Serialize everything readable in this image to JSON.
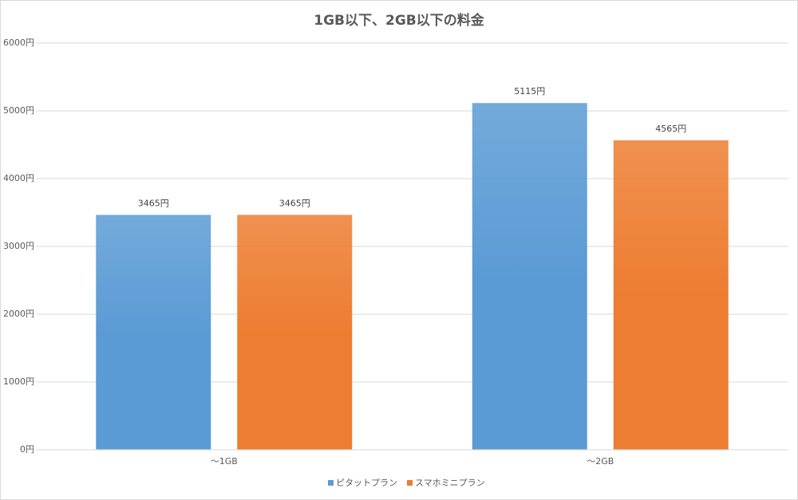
{
  "chart_data": {
    "type": "bar",
    "title": "1GB以下、2GB以下の料金",
    "categories": [
      "～1GB",
      "～2GB"
    ],
    "series": [
      {
        "name": "ピタットプラン",
        "color": "#5b9bd5",
        "values": [
          3465,
          5115
        ],
        "value_labels": [
          "3465円",
          "5115円"
        ]
      },
      {
        "name": "スマホミニプラン",
        "color": "#ed7d31",
        "values": [
          3465,
          4565
        ],
        "value_labels": [
          "3465円",
          "4565円"
        ]
      }
    ],
    "ylim": [
      0,
      6000
    ],
    "yticks": [
      {
        "value": 0,
        "label": "0円"
      },
      {
        "value": 1000,
        "label": "1000円"
      },
      {
        "value": 2000,
        "label": "2000円"
      },
      {
        "value": 3000,
        "label": "3000円"
      },
      {
        "value": 4000,
        "label": "4000円"
      },
      {
        "value": 5000,
        "label": "5000円"
      },
      {
        "value": 6000,
        "label": "6000円"
      }
    ],
    "grid": true,
    "legend": "bottom"
  }
}
